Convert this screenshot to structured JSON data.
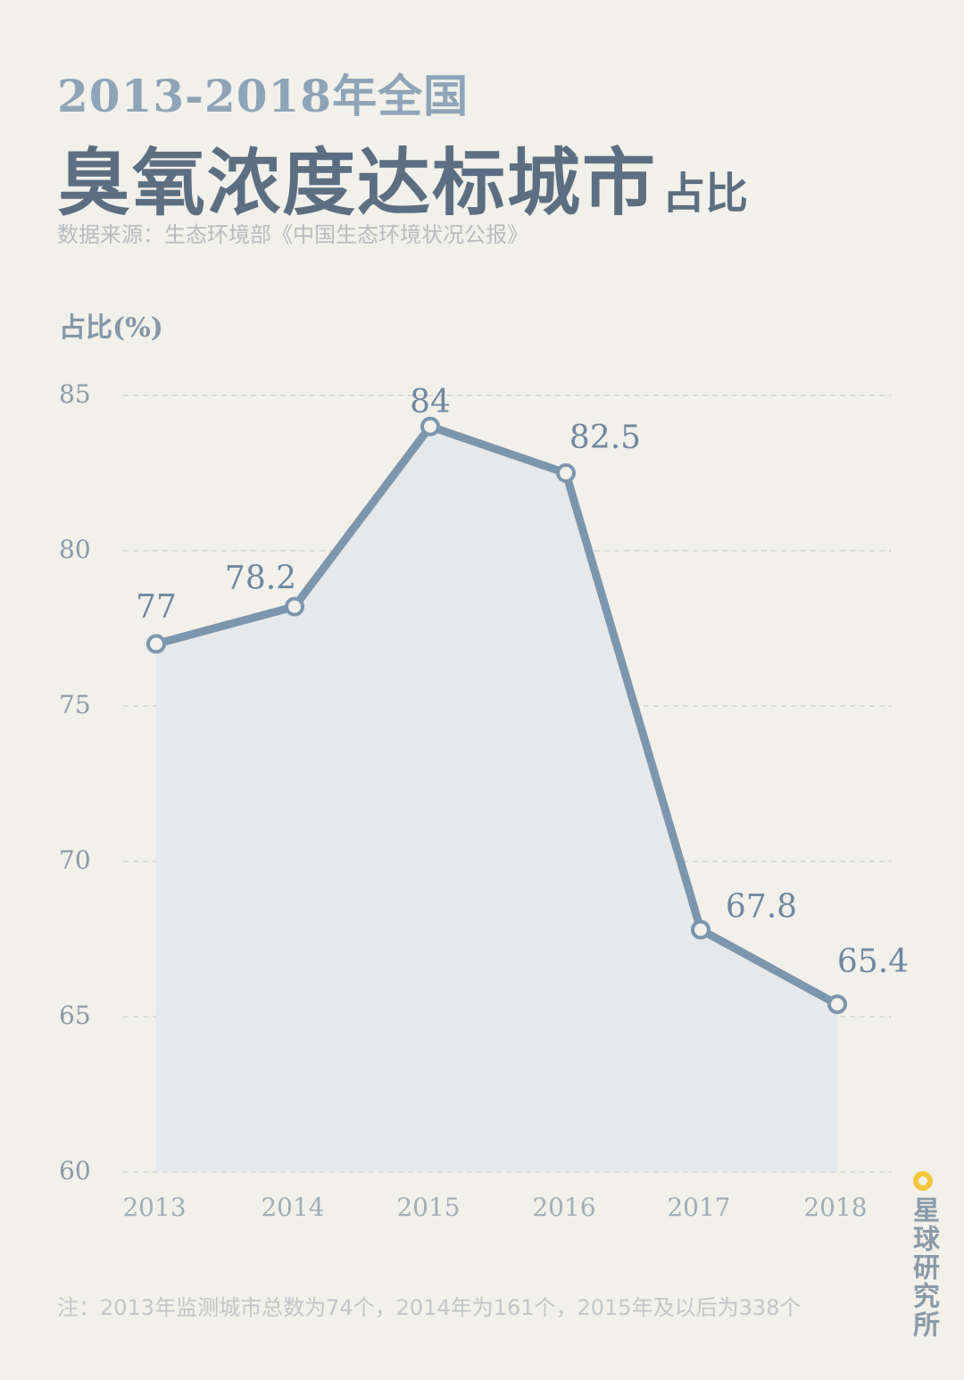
{
  "header": {
    "title_line1": "2013-2018年全国",
    "title_main": "臭氧浓度达标城市",
    "title_suffix": "占比",
    "source": "数据来源：生态环境部《中国生态环境状况公报》"
  },
  "chart_data": {
    "type": "area",
    "ylabel": "占比(%)",
    "x": [
      "2013",
      "2014",
      "2015",
      "2016",
      "2017",
      "2018"
    ],
    "values": [
      77,
      78.2,
      84,
      82.5,
      67.8,
      65.4
    ],
    "data_labels": [
      "77",
      "78.2",
      "84",
      "82.5",
      "67.8",
      "65.4"
    ],
    "ylim": [
      60,
      85
    ],
    "yticks": [
      "60",
      "65",
      "70",
      "75",
      "80",
      "85"
    ],
    "grid": "dashed-horizontal",
    "line_color": "#7c96ae",
    "fill_color": "#e3e8ec"
  },
  "footer": {
    "note": "注：2013年监测城市总数为74个，2014年为161个，2015年及以后为338个",
    "brand": "星球研究所",
    "brand_accent": "#f6c63a"
  }
}
